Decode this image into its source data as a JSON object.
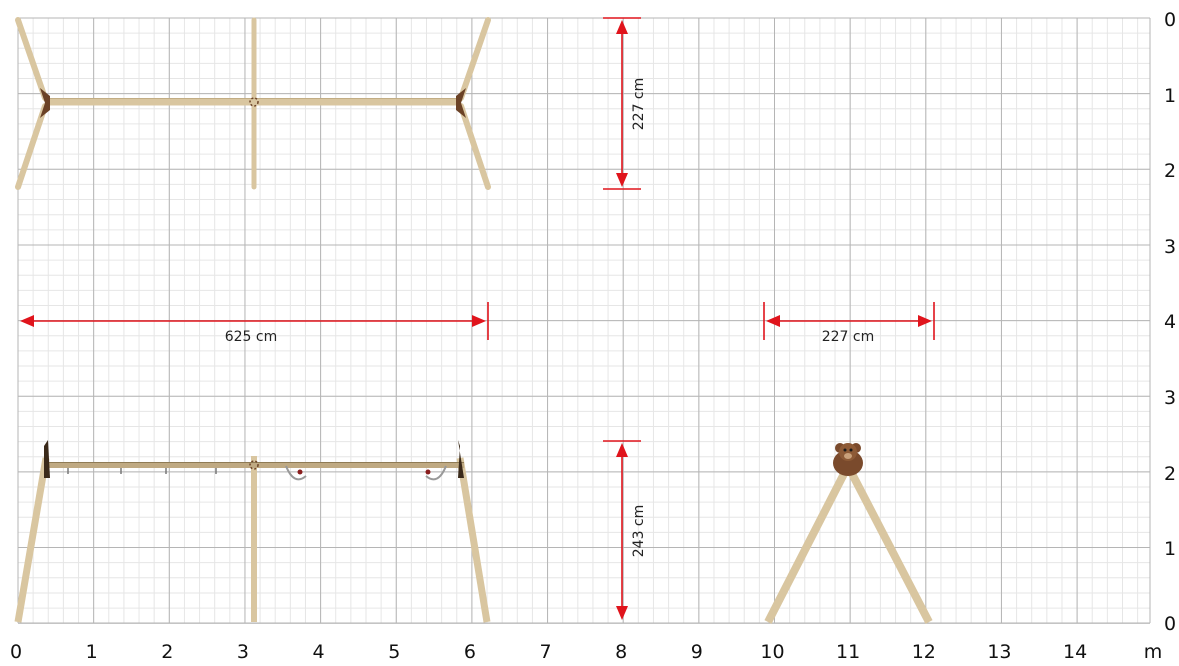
{
  "x_axis": {
    "labels": [
      "0",
      "1",
      "2",
      "3",
      "4",
      "5",
      "6",
      "7",
      "8",
      "9",
      "10",
      "11",
      "12",
      "13",
      "14"
    ],
    "unit": "m"
  },
  "y_axis_top": {
    "labels": [
      "0",
      "1",
      "2",
      "3"
    ]
  },
  "y_axis_bottom": {
    "labels": [
      "0",
      "1",
      "2",
      "3"
    ]
  },
  "y_axis_mid": {
    "labels": [
      "4"
    ]
  },
  "dimensions": {
    "top_view_depth": "227 cm",
    "length": "625 cm",
    "side_view_width": "227 cm",
    "height": "243 cm"
  },
  "colors": {
    "grid_major": "#b5b5b5",
    "grid_minor": "#e6e6e6",
    "dimension": "#e0141c",
    "wood": "#d9c6a0",
    "wood_edge": "#b59f74",
    "bracket": "#6b4226",
    "bear": "#7a4a2c"
  }
}
